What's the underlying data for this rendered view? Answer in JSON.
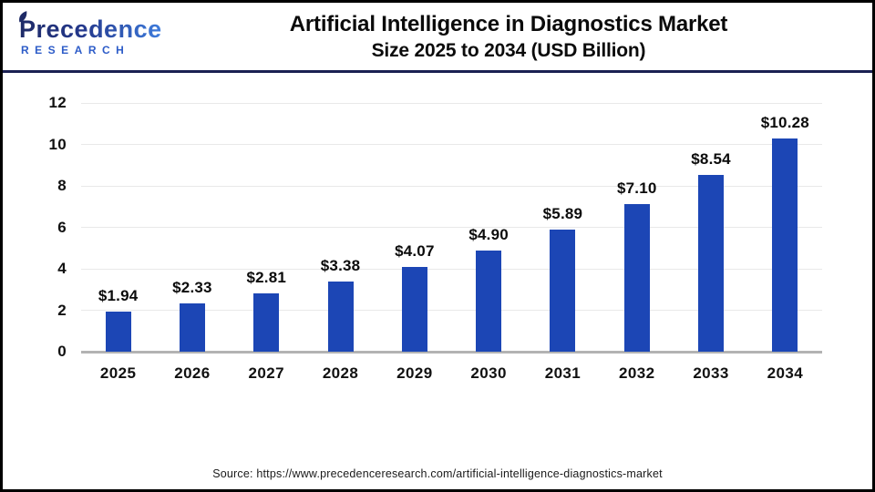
{
  "header": {
    "logo_name": "Precedence",
    "logo_subname": "RESEARCH",
    "title_line1": "Artificial Intelligence in Diagnostics Market",
    "title_line2": "Size 2025 to 2034 (USD Billion)"
  },
  "chart_data": {
    "type": "bar",
    "title": "Artificial Intelligence in Diagnostics Market Size 2025 to 2034 (USD Billion)",
    "categories": [
      "2025",
      "2026",
      "2027",
      "2028",
      "2029",
      "2030",
      "2031",
      "2032",
      "2033",
      "2034"
    ],
    "values": [
      1.94,
      2.33,
      2.81,
      3.38,
      4.07,
      4.9,
      5.89,
      7.1,
      8.54,
      10.28
    ],
    "value_labels": [
      "$1.94",
      "$2.33",
      "$2.81",
      "$3.38",
      "$4.07",
      "$4.90",
      "$5.89",
      "$7.10",
      "$8.54",
      "$10.28"
    ],
    "xlabel": "",
    "ylabel": "",
    "ylim": [
      0,
      12
    ],
    "yticks": [
      0,
      2,
      4,
      6,
      8,
      10,
      12
    ],
    "grid": true,
    "legend": false,
    "bar_color": "#1C46B5",
    "gridline_color": "#E9E9E9",
    "baseline_color": "#B3B3B3"
  },
  "footer": {
    "source": "Source: https://www.precedenceresearch.com/artificial-intelligence-diagnostics-market"
  },
  "colors": {
    "header_divider": "#1A2052",
    "frame_border": "#000000",
    "logo_navy": "#1E2A66",
    "logo_blue": "#3D7BDC",
    "logo_subtext_blue": "#2D5CC8"
  }
}
